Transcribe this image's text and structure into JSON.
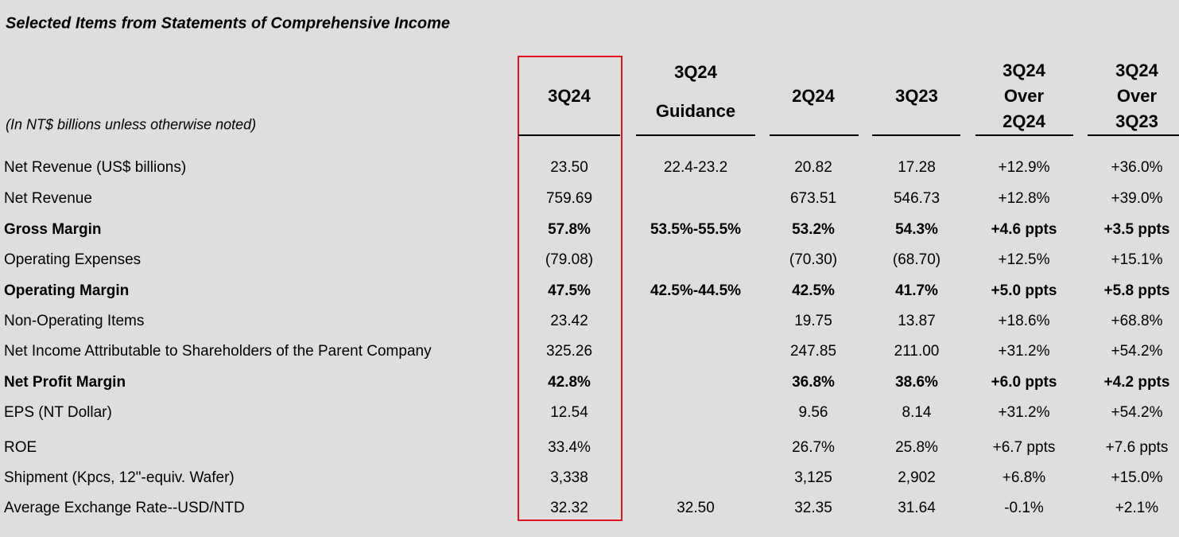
{
  "title": "Selected Items from Statements of Comprehensive Income",
  "note": "(In NT$ billions unless otherwise noted)",
  "table": {
    "columns": [
      [
        "3Q24"
      ],
      [
        "3Q24",
        "Guidance"
      ],
      [
        "2Q24"
      ],
      [
        "3Q23"
      ],
      [
        "3Q24",
        "Over",
        "2Q24"
      ],
      [
        "3Q24",
        "Over",
        "3Q23"
      ]
    ],
    "rows": [
      {
        "label": "Net Revenue (US$ billions)",
        "bold": false,
        "cells": [
          "23.50",
          "22.4-23.2",
          "20.82",
          "17.28",
          "+12.9%",
          "+36.0%"
        ]
      },
      {
        "label": "Net Revenue",
        "bold": false,
        "cells": [
          "759.69",
          null,
          "673.51",
          "546.73",
          "+12.8%",
          "+39.0%"
        ]
      },
      {
        "label": "Gross Margin",
        "bold": true,
        "cells": [
          "57.8%",
          "53.5%-55.5%",
          "53.2%",
          "54.3%",
          "+4.6 ppts",
          "+3.5 ppts"
        ]
      },
      {
        "label": "Operating Expenses",
        "bold": false,
        "cells": [
          "(79.08)",
          null,
          "(70.30)",
          "(68.70)",
          "+12.5%",
          "+15.1%"
        ]
      },
      {
        "label": "Operating Margin",
        "bold": true,
        "cells": [
          "47.5%",
          "42.5%-44.5%",
          "42.5%",
          "41.7%",
          "+5.0 ppts",
          "+5.8 ppts"
        ]
      },
      {
        "label": "Non-Operating Items",
        "bold": false,
        "cells": [
          "23.42",
          null,
          "19.75",
          "13.87",
          "+18.6%",
          "+68.8%"
        ]
      },
      {
        "label": "Net Income Attributable to Shareholders of the Parent Company",
        "bold": false,
        "cells": [
          "325.26",
          null,
          "247.85",
          "211.00",
          "+31.2%",
          "+54.2%"
        ]
      },
      {
        "label": "Net Profit Margin",
        "bold": true,
        "cells": [
          "42.8%",
          null,
          "36.8%",
          "38.6%",
          "+6.0 ppts",
          "+4.2 ppts"
        ]
      },
      {
        "label": "EPS (NT Dollar)",
        "bold": false,
        "cells": [
          "12.54",
          null,
          "9.56",
          "8.14",
          "+31.2%",
          "+54.2%"
        ]
      },
      {
        "label": "ROE",
        "bold": false,
        "cells": [
          "33.4%",
          null,
          "26.7%",
          "25.8%",
          "+6.7 ppts",
          "+7.6 ppts"
        ]
      },
      {
        "label": "Shipment (Kpcs, 12\"-equiv. Wafer)",
        "bold": false,
        "cells": [
          "3,338",
          null,
          "3,125",
          "2,902",
          "+6.8%",
          "+15.0%"
        ]
      },
      {
        "label": "Average Exchange Rate--USD/NTD",
        "bold": false,
        "cells": [
          "32.32",
          "32.50",
          "32.35",
          "31.64",
          "-0.1%",
          "+2.1%"
        ]
      }
    ]
  }
}
